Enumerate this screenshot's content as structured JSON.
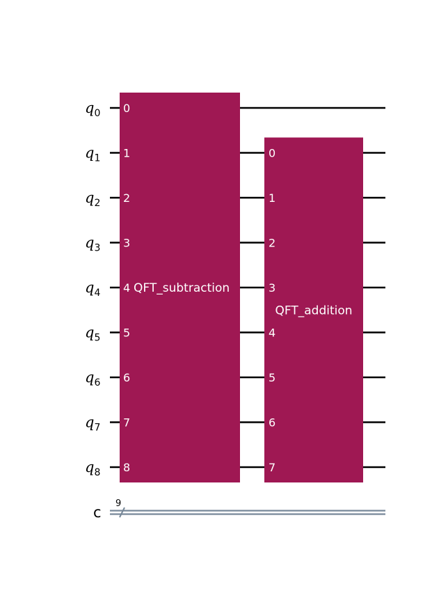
{
  "colors": {
    "wire": "#000000",
    "classical_wire": "#778899",
    "gate_fill": "#9F1853",
    "gate_text": "#FFFFFF"
  },
  "qubits": [
    {
      "name": "q",
      "index": "0"
    },
    {
      "name": "q",
      "index": "1"
    },
    {
      "name": "q",
      "index": "2"
    },
    {
      "name": "q",
      "index": "3"
    },
    {
      "name": "q",
      "index": "4"
    },
    {
      "name": "q",
      "index": "5"
    },
    {
      "name": "q",
      "index": "6"
    },
    {
      "name": "q",
      "index": "7"
    },
    {
      "name": "q",
      "index": "8"
    }
  ],
  "classical_register": {
    "name": "c",
    "size": "9"
  },
  "gates": [
    {
      "name": "QFT_subtraction",
      "qubits": [
        0,
        1,
        2,
        3,
        4,
        5,
        6,
        7,
        8
      ],
      "pin_labels": [
        "0",
        "1",
        "2",
        "3",
        "4",
        "5",
        "6",
        "7",
        "8"
      ]
    },
    {
      "name": "QFT_addition",
      "qubits": [
        1,
        2,
        3,
        4,
        5,
        6,
        7,
        8
      ],
      "pin_labels": [
        "0",
        "1",
        "2",
        "3",
        "4",
        "5",
        "6",
        "7"
      ]
    }
  ]
}
